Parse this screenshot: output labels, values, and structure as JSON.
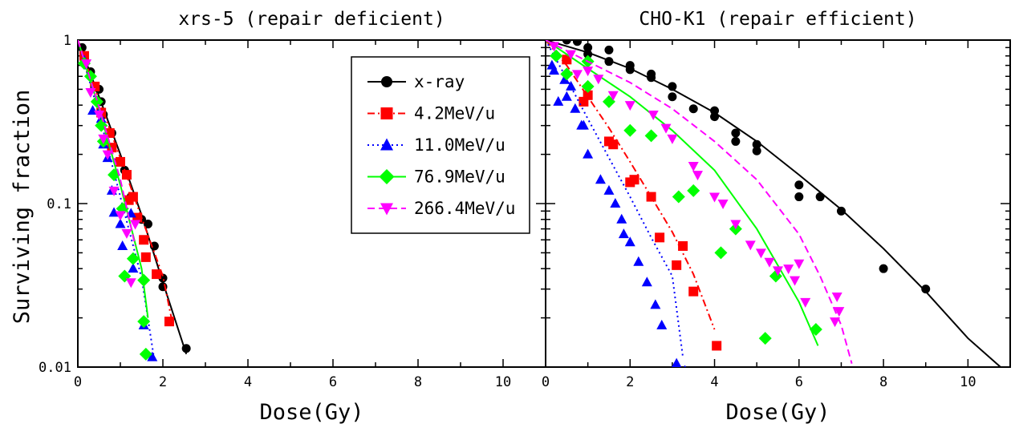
{
  "figure": {
    "ylabel": "Surviving fraction",
    "legend_location": "top-right of left panel"
  },
  "series_styles": [
    {
      "key": "xray",
      "color": "#000000",
      "marker": "circle",
      "line": "solid"
    },
    {
      "key": "c42",
      "color": "#ff0000",
      "marker": "square",
      "line": "dashdot"
    },
    {
      "key": "c110",
      "color": "#0000ff",
      "marker": "triangle-up",
      "line": "dotted"
    },
    {
      "key": "c769",
      "color": "#00ff00",
      "marker": "diamond",
      "line": "solid"
    },
    {
      "key": "c2664",
      "color": "#ff00ff",
      "marker": "triangle-down",
      "line": "dashed"
    }
  ],
  "chart_data": [
    {
      "type": "scatter",
      "title": "xrs-5 (repair deficient)",
      "xlabel": "Dose(Gy)",
      "ylabel": "Surviving fraction",
      "xlim": [
        0,
        11
      ],
      "ylim": [
        0.01,
        1
      ],
      "yscale": "log",
      "xticks": [
        "0",
        "2",
        "4",
        "6",
        "8",
        "10"
      ],
      "yticks": [
        "0.01",
        "0.1",
        "1"
      ],
      "grid": false,
      "legend": [
        "x-ray",
        "4.2MeV/u",
        "11.0MeV/u",
        "76.9MeV/u",
        "266.4MeV/u"
      ],
      "series": [
        {
          "name": "x-ray",
          "points": [
            [
              0.1,
              0.9
            ],
            [
              0.3,
              0.64
            ],
            [
              0.5,
              0.5
            ],
            [
              0.55,
              0.42
            ],
            [
              0.6,
              0.35
            ],
            [
              0.8,
              0.27
            ],
            [
              0.95,
              0.18
            ],
            [
              1.1,
              0.16
            ],
            [
              1.25,
              0.11
            ],
            [
              1.5,
              0.08
            ],
            [
              1.65,
              0.075
            ],
            [
              1.8,
              0.055
            ],
            [
              2.0,
              0.035
            ],
            [
              2.0,
              0.031
            ],
            [
              2.55,
              0.013
            ]
          ],
          "fit": [
            [
              0,
              1
            ],
            [
              0.5,
              0.45
            ],
            [
              1,
              0.2
            ],
            [
              1.5,
              0.085
            ],
            [
              2,
              0.033
            ],
            [
              2.55,
              0.012
            ]
          ]
        },
        {
          "name": "4.2MeV/u",
          "points": [
            [
              0.15,
              0.8
            ],
            [
              0.4,
              0.52
            ],
            [
              0.55,
              0.36
            ],
            [
              0.75,
              0.27
            ],
            [
              0.8,
              0.22
            ],
            [
              1.0,
              0.18
            ],
            [
              1.15,
              0.15
            ],
            [
              1.2,
              0.105
            ],
            [
              1.3,
              0.11
            ],
            [
              1.4,
              0.082
            ],
            [
              1.55,
              0.06
            ],
            [
              1.6,
              0.047
            ],
            [
              1.85,
              0.037
            ],
            [
              2.15,
              0.019
            ]
          ],
          "fit": [
            [
              0,
              1
            ],
            [
              0.5,
              0.43
            ],
            [
              1,
              0.19
            ],
            [
              1.5,
              0.082
            ],
            [
              2,
              0.036
            ],
            [
              2.2,
              0.02
            ]
          ]
        },
        {
          "name": "11.0MeV/u",
          "points": [
            [
              0.15,
              0.75
            ],
            [
              0.35,
              0.37
            ],
            [
              0.55,
              0.33
            ],
            [
              0.6,
              0.23
            ],
            [
              0.7,
              0.19
            ],
            [
              0.8,
              0.12
            ],
            [
              0.85,
              0.088
            ],
            [
              1.0,
              0.075
            ],
            [
              1.05,
              0.055
            ],
            [
              1.25,
              0.087
            ],
            [
              1.3,
              0.04
            ],
            [
              1.55,
              0.018
            ],
            [
              1.75,
              0.0115
            ]
          ],
          "fit": [
            [
              0,
              1
            ],
            [
              0.5,
              0.35
            ],
            [
              1,
              0.11
            ],
            [
              1.5,
              0.035
            ],
            [
              1.8,
              0.011
            ]
          ]
        },
        {
          "name": "76.9MeV/u",
          "points": [
            [
              0.15,
              0.72
            ],
            [
              0.3,
              0.6
            ],
            [
              0.45,
              0.42
            ],
            [
              0.55,
              0.3
            ],
            [
              0.6,
              0.24
            ],
            [
              0.85,
              0.15
            ],
            [
              1.05,
              0.093
            ],
            [
              1.1,
              0.036
            ],
            [
              1.3,
              0.046
            ],
            [
              1.55,
              0.034
            ],
            [
              1.55,
              0.019
            ],
            [
              1.6,
              0.012
            ]
          ],
          "fit": [
            [
              0,
              1
            ],
            [
              0.5,
              0.38
            ],
            [
              1,
              0.13
            ],
            [
              1.5,
              0.04
            ],
            [
              1.65,
              0.02
            ]
          ]
        },
        {
          "name": "266.4MeV/u",
          "points": [
            [
              0.2,
              0.72
            ],
            [
              0.3,
              0.48
            ],
            [
              0.5,
              0.35
            ],
            [
              0.6,
              0.25
            ],
            [
              0.7,
              0.2
            ],
            [
              0.85,
              0.12
            ],
            [
              1.0,
              0.085
            ],
            [
              1.15,
              0.066
            ],
            [
              1.25,
              0.033
            ],
            [
              1.35,
              0.075
            ]
          ],
          "fit": [
            [
              0,
              1
            ],
            [
              0.5,
              0.39
            ],
            [
              1,
              0.14
            ],
            [
              1.35,
              0.055
            ]
          ]
        }
      ]
    },
    {
      "type": "scatter",
      "title": "CHO-K1 (repair efficient)",
      "xlabel": "Dose(Gy)",
      "ylabel": "",
      "xlim": [
        0,
        11
      ],
      "ylim": [
        0.01,
        1
      ],
      "yscale": "log",
      "xticks": [
        "0",
        "2",
        "4",
        "6",
        "8",
        "10"
      ],
      "yticks": [],
      "grid": false,
      "series": [
        {
          "name": "x-ray",
          "points": [
            [
              0.5,
              1.0
            ],
            [
              0.75,
              0.98
            ],
            [
              1.0,
              0.9
            ],
            [
              1.5,
              0.87
            ],
            [
              1.0,
              0.82
            ],
            [
              1.5,
              0.74
            ],
            [
              2.0,
              0.7
            ],
            [
              2.0,
              0.66
            ],
            [
              2.5,
              0.62
            ],
            [
              2.5,
              0.59
            ],
            [
              3.0,
              0.52
            ],
            [
              3.0,
              0.45
            ],
            [
              3.5,
              0.38
            ],
            [
              4.0,
              0.37
            ],
            [
              4.0,
              0.34
            ],
            [
              4.5,
              0.27
            ],
            [
              4.5,
              0.24
            ],
            [
              5.0,
              0.23
            ],
            [
              5.0,
              0.21
            ],
            [
              6.0,
              0.13
            ],
            [
              6.0,
              0.11
            ],
            [
              6.5,
              0.11
            ],
            [
              7.0,
              0.09
            ],
            [
              8.0,
              0.04
            ],
            [
              9.0,
              0.03
            ]
          ],
          "fit": [
            [
              0,
              1
            ],
            [
              1,
              0.84
            ],
            [
              2,
              0.67
            ],
            [
              3,
              0.5
            ],
            [
              4,
              0.36
            ],
            [
              5,
              0.24
            ],
            [
              6,
              0.15
            ],
            [
              7,
              0.092
            ],
            [
              8,
              0.053
            ],
            [
              9,
              0.029
            ],
            [
              10,
              0.015
            ],
            [
              10.85,
              0.0096
            ]
          ]
        },
        {
          "name": "4.2MeV/u",
          "points": [
            [
              0.5,
              0.76
            ],
            [
              0.9,
              0.42
            ],
            [
              1.0,
              0.46
            ],
            [
              1.5,
              0.24
            ],
            [
              1.6,
              0.23
            ],
            [
              2.0,
              0.135
            ],
            [
              2.1,
              0.14
            ],
            [
              2.5,
              0.11
            ],
            [
              2.7,
              0.062
            ],
            [
              3.1,
              0.042
            ],
            [
              3.25,
              0.055
            ],
            [
              3.5,
              0.029
            ],
            [
              4.05,
              0.0135
            ]
          ],
          "fit": [
            [
              0,
              1
            ],
            [
              0.5,
              0.7
            ],
            [
              1,
              0.45
            ],
            [
              1.5,
              0.29
            ],
            [
              2,
              0.18
            ],
            [
              2.5,
              0.11
            ],
            [
              3,
              0.067
            ],
            [
              3.5,
              0.037
            ],
            [
              4,
              0.017
            ]
          ]
        },
        {
          "name": "11.0MeV/u",
          "points": [
            [
              0.15,
              0.7
            ],
            [
              0.2,
              0.65
            ],
            [
              0.3,
              0.42
            ],
            [
              0.45,
              0.57
            ],
            [
              0.5,
              0.45
            ],
            [
              0.6,
              0.52
            ],
            [
              0.7,
              0.38
            ],
            [
              0.85,
              0.3
            ],
            [
              0.9,
              0.3
            ],
            [
              1.0,
              0.2
            ],
            [
              1.3,
              0.14
            ],
            [
              1.5,
              0.12
            ],
            [
              1.65,
              0.1
            ],
            [
              1.8,
              0.08
            ],
            [
              1.85,
              0.065
            ],
            [
              2.0,
              0.058
            ],
            [
              2.2,
              0.044
            ],
            [
              2.4,
              0.033
            ],
            [
              2.6,
              0.024
            ],
            [
              2.75,
              0.018
            ],
            [
              3.1,
              0.0105
            ],
            [
              3.3,
              0.0095
            ]
          ],
          "fit": [
            [
              0,
              1
            ],
            [
              0.5,
              0.58
            ],
            [
              1,
              0.33
            ],
            [
              1.5,
              0.19
            ],
            [
              2,
              0.11
            ],
            [
              2.5,
              0.062
            ],
            [
              3,
              0.036
            ],
            [
              3.25,
              0.0115
            ]
          ]
        },
        {
          "name": "76.9MeV/u",
          "points": [
            [
              0.25,
              0.8
            ],
            [
              0.5,
              0.62
            ],
            [
              1.0,
              0.74
            ],
            [
              1.0,
              0.52
            ],
            [
              1.5,
              0.42
            ],
            [
              2.0,
              0.28
            ],
            [
              2.5,
              0.26
            ],
            [
              3.15,
              0.11
            ],
            [
              3.5,
              0.12
            ],
            [
              4.15,
              0.05
            ],
            [
              4.5,
              0.07
            ],
            [
              5.2,
              0.015
            ],
            [
              5.45,
              0.036
            ],
            [
              6.4,
              0.017
            ]
          ],
          "fit": [
            [
              0,
              1
            ],
            [
              1,
              0.67
            ],
            [
              2,
              0.45
            ],
            [
              3,
              0.28
            ],
            [
              4,
              0.16
            ],
            [
              5,
              0.07
            ],
            [
              6,
              0.025
            ],
            [
              6.45,
              0.0135
            ]
          ]
        },
        {
          "name": "266.4MeV/u",
          "points": [
            [
              0.2,
              0.92
            ],
            [
              0.6,
              0.82
            ],
            [
              0.75,
              0.62
            ],
            [
              1.0,
              0.65
            ],
            [
              1.25,
              0.58
            ],
            [
              1.6,
              0.46
            ],
            [
              2.0,
              0.4
            ],
            [
              2.55,
              0.35
            ],
            [
              2.85,
              0.29
            ],
            [
              3.0,
              0.25
            ],
            [
              3.5,
              0.17
            ],
            [
              3.6,
              0.15
            ],
            [
              4.0,
              0.11
            ],
            [
              4.2,
              0.1
            ],
            [
              4.5,
              0.075
            ],
            [
              4.85,
              0.056
            ],
            [
              5.1,
              0.05
            ],
            [
              5.3,
              0.044
            ],
            [
              5.5,
              0.039
            ],
            [
              5.75,
              0.04
            ],
            [
              5.9,
              0.034
            ],
            [
              6.0,
              0.043
            ],
            [
              6.15,
              0.025
            ],
            [
              6.9,
              0.027
            ],
            [
              6.85,
              0.019
            ],
            [
              6.95,
              0.022
            ]
          ],
          "fit": [
            [
              0,
              1
            ],
            [
              1,
              0.74
            ],
            [
              2,
              0.55
            ],
            [
              3,
              0.38
            ],
            [
              4,
              0.24
            ],
            [
              5,
              0.14
            ],
            [
              6,
              0.065
            ],
            [
              6.5,
              0.036
            ],
            [
              7,
              0.018
            ],
            [
              7.25,
              0.0105
            ]
          ]
        }
      ]
    }
  ]
}
